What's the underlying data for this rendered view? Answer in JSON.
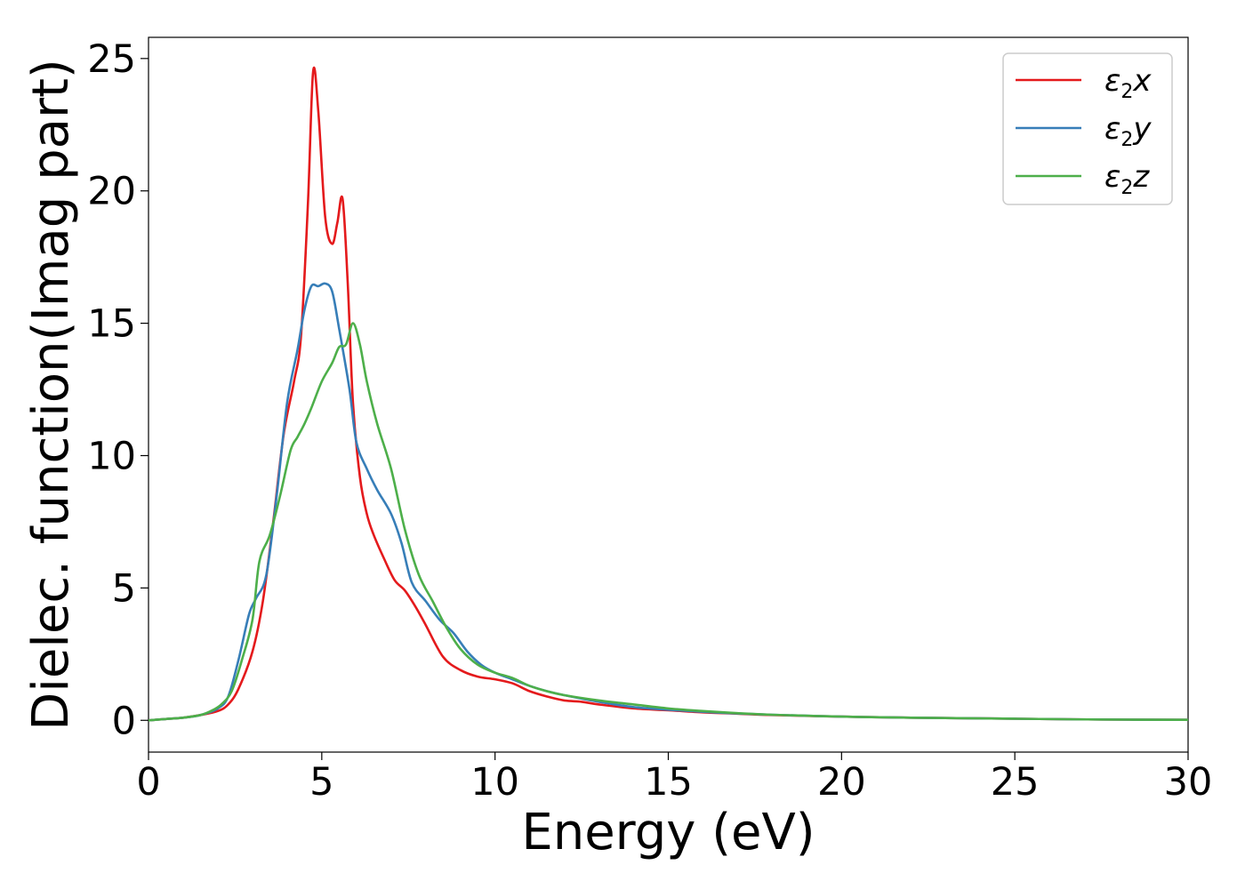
{
  "chart_data": {
    "type": "line",
    "xlabel": "Energy (eV)",
    "ylabel": "Dielec. function(Imag part)",
    "xlim": [
      0,
      30
    ],
    "ylim": [
      -1.2,
      25.8
    ],
    "xticks": [
      0,
      5,
      10,
      15,
      20,
      25,
      30
    ],
    "yticks": [
      0,
      5,
      10,
      15,
      20,
      25
    ],
    "grid": false,
    "legend_position": "top-right",
    "series": [
      {
        "name": "x",
        "legend_base": "ε",
        "legend_sub": "2",
        "color": "#e41a1c",
        "x": [
          0,
          0.5,
          1.0,
          1.5,
          2.0,
          2.3,
          2.6,
          3.0,
          3.3,
          3.6,
          3.9,
          4.2,
          4.4,
          4.6,
          4.75,
          4.9,
          5.1,
          5.3,
          5.45,
          5.6,
          5.75,
          5.9,
          6.1,
          6.3,
          6.5,
          6.8,
          7.1,
          7.4,
          7.7,
          8.0,
          8.5,
          9.0,
          9.5,
          10.0,
          10.5,
          11.0,
          11.5,
          12.0,
          12.5,
          13.0,
          14.0,
          15.0,
          16.0,
          17.0,
          18.0,
          20.0,
          22.0,
          25.0,
          27.5,
          30.0
        ],
        "y": [
          0,
          0.05,
          0.1,
          0.2,
          0.35,
          0.6,
          1.2,
          2.6,
          4.5,
          7.5,
          10.8,
          12.8,
          14.5,
          19.5,
          24.5,
          23.0,
          19.0,
          18.0,
          18.8,
          19.7,
          16.5,
          12.0,
          9.2,
          7.8,
          7.0,
          6.1,
          5.3,
          4.9,
          4.3,
          3.6,
          2.4,
          1.9,
          1.65,
          1.55,
          1.4,
          1.1,
          0.9,
          0.75,
          0.7,
          0.6,
          0.45,
          0.38,
          0.3,
          0.25,
          0.2,
          0.14,
          0.1,
          0.06,
          0.03,
          0.02
        ]
      },
      {
        "name": "y",
        "legend_base": "ε",
        "legend_sub": "2",
        "color": "#377eb8",
        "x": [
          0,
          0.5,
          1.0,
          1.5,
          2.0,
          2.3,
          2.6,
          2.9,
          3.1,
          3.4,
          3.7,
          4.0,
          4.3,
          4.5,
          4.7,
          4.9,
          5.1,
          5.3,
          5.5,
          5.8,
          6.0,
          6.3,
          6.6,
          7.0,
          7.3,
          7.6,
          8.0,
          8.4,
          8.8,
          9.2,
          9.6,
          10.0,
          10.5,
          11.0,
          11.5,
          12.0,
          13.0,
          14.0,
          15.0,
          16.0,
          17.0,
          18.0,
          20.0,
          22.0,
          25.0,
          27.5,
          30.0
        ],
        "y": [
          0,
          0.05,
          0.1,
          0.2,
          0.45,
          0.9,
          2.3,
          4.0,
          4.6,
          5.5,
          8.5,
          12.0,
          14.0,
          15.5,
          16.4,
          16.4,
          16.5,
          16.2,
          14.8,
          12.5,
          10.5,
          9.5,
          8.7,
          7.8,
          6.7,
          5.2,
          4.5,
          3.8,
          3.3,
          2.6,
          2.1,
          1.8,
          1.55,
          1.3,
          1.1,
          0.95,
          0.7,
          0.5,
          0.4,
          0.32,
          0.26,
          0.21,
          0.14,
          0.1,
          0.06,
          0.03,
          0.02
        ]
      },
      {
        "name": "z",
        "legend_base": "ε",
        "legend_sub": "2",
        "color": "#4daf4a",
        "x": [
          0,
          0.5,
          1.0,
          1.5,
          1.8,
          2.1,
          2.4,
          2.7,
          3.0,
          3.2,
          3.5,
          3.8,
          4.1,
          4.3,
          4.5,
          4.7,
          5.0,
          5.3,
          5.5,
          5.7,
          5.9,
          6.1,
          6.3,
          6.6,
          7.0,
          7.4,
          7.8,
          8.2,
          8.6,
          9.0,
          9.5,
          10.0,
          10.5,
          11.0,
          11.5,
          12.0,
          13.0,
          14.0,
          15.0,
          16.0,
          17.0,
          18.0,
          20.0,
          22.0,
          25.0,
          27.5,
          30.0
        ],
        "y": [
          0,
          0.05,
          0.1,
          0.2,
          0.35,
          0.6,
          1.1,
          2.3,
          3.8,
          6.0,
          7.0,
          8.5,
          10.2,
          10.7,
          11.2,
          11.8,
          12.8,
          13.5,
          14.1,
          14.2,
          15.0,
          14.2,
          12.8,
          11.2,
          9.5,
          7.2,
          5.5,
          4.5,
          3.5,
          2.7,
          2.1,
          1.8,
          1.6,
          1.3,
          1.1,
          0.95,
          0.75,
          0.6,
          0.45,
          0.35,
          0.27,
          0.21,
          0.14,
          0.1,
          0.06,
          0.03,
          0.02
        ]
      }
    ]
  }
}
